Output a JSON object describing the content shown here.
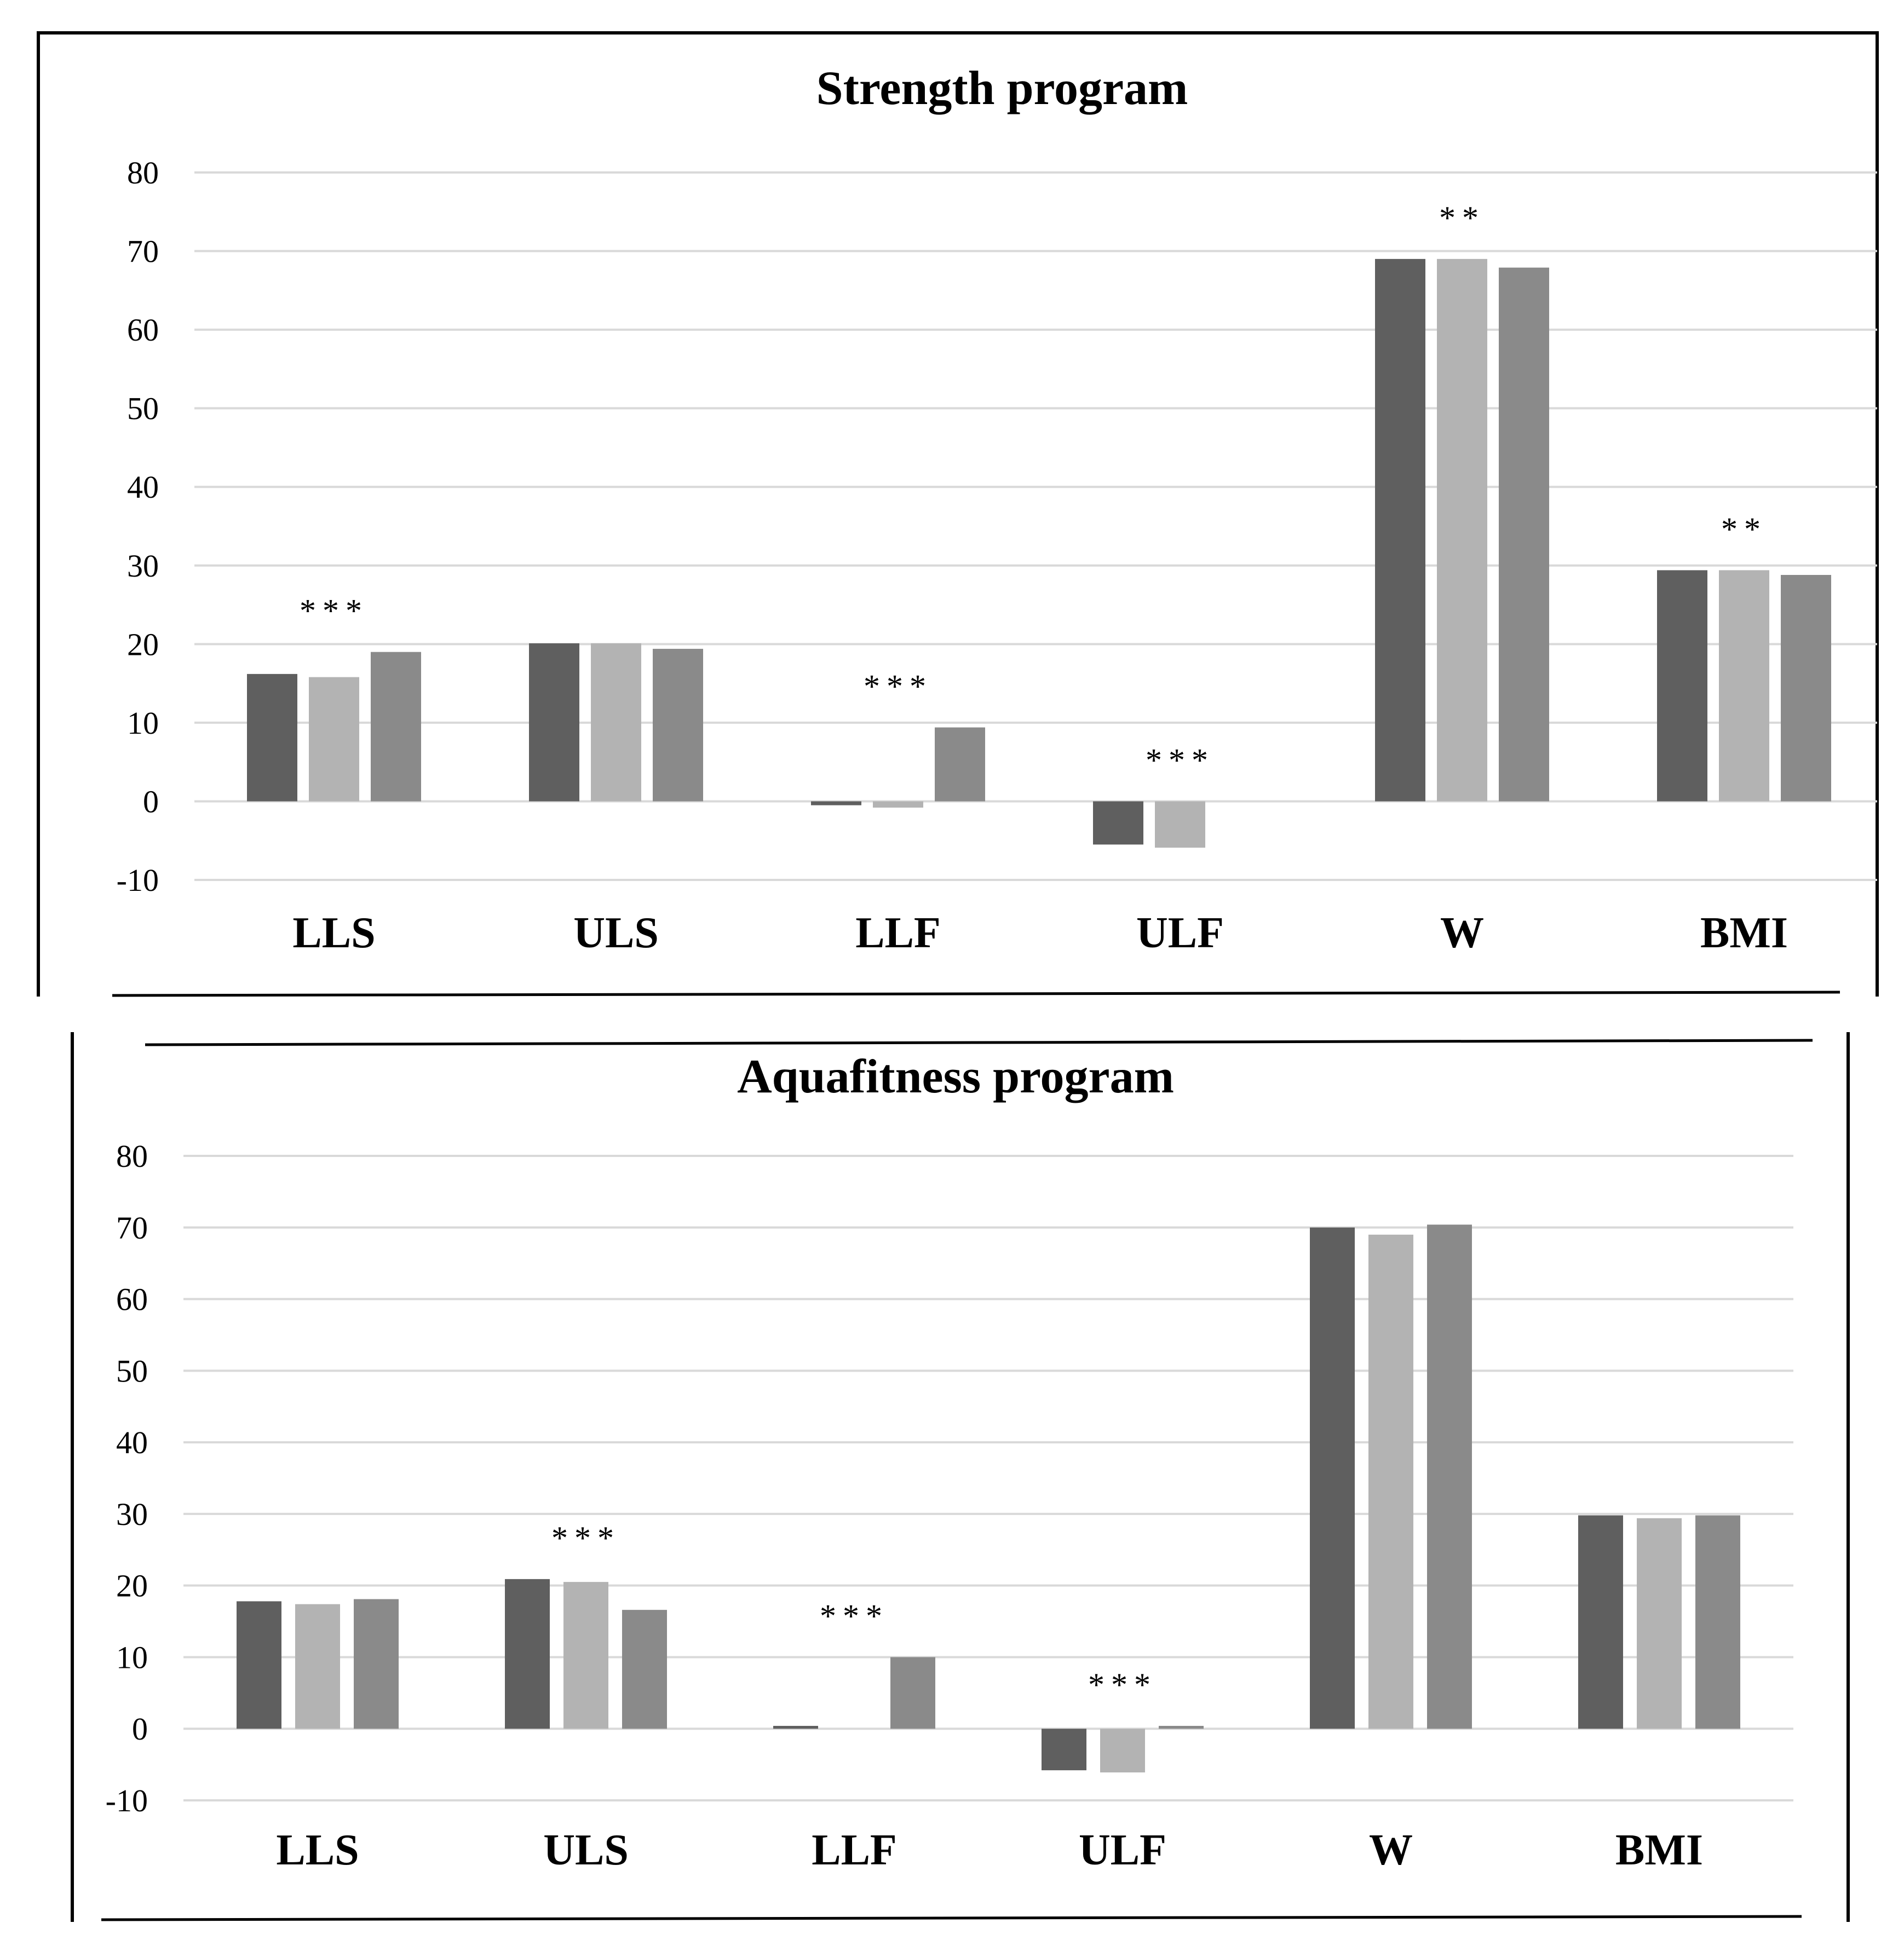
{
  "colors": {
    "series": [
      "#5f5f5f",
      "#b3b3b3",
      "#8a8a8a"
    ],
    "grid": "#d9d9d9",
    "frame": "#000000",
    "text": "#000000"
  },
  "chart_data": [
    {
      "type": "bar",
      "title": "Strength program",
      "categories": [
        "LLS",
        "ULS",
        "LLF",
        "ULF",
        "W",
        "BMI"
      ],
      "ylim": [
        -10,
        80
      ],
      "yticks": [
        80,
        70,
        60,
        50,
        40,
        30,
        20,
        10,
        0,
        -10
      ],
      "grid": true,
      "series": [
        {
          "name": "",
          "values": [
            16.2,
            20.1,
            -0.5,
            -5.5,
            69.0,
            29.4
          ]
        },
        {
          "name": "",
          "values": [
            15.8,
            20.1,
            -0.8,
            -5.9,
            69.0,
            29.4
          ]
        },
        {
          "name": "",
          "values": [
            19.0,
            19.4,
            9.4,
            null,
            67.9,
            28.8
          ]
        }
      ],
      "significance": [
        "***",
        "",
        "***",
        "***",
        "**",
        "**"
      ]
    },
    {
      "type": "bar",
      "title": "Aquafitness program",
      "categories": [
        "LLS",
        "ULS",
        "LLF",
        "ULF",
        "W",
        "BMI"
      ],
      "ylim": [
        -10,
        80
      ],
      "yticks": [
        80,
        70,
        60,
        50,
        40,
        30,
        20,
        10,
        0,
        -10
      ],
      "grid": true,
      "series": [
        {
          "name": "",
          "values": [
            17.8,
            20.9,
            0.4,
            -5.8,
            70.0,
            29.8
          ]
        },
        {
          "name": "",
          "values": [
            17.4,
            20.5,
            null,
            -6.1,
            69.0,
            29.4
          ]
        },
        {
          "name": "",
          "values": [
            18.1,
            16.6,
            10.0,
            0.4,
            70.4,
            29.8
          ]
        }
      ],
      "significance": [
        "",
        "***",
        "***",
        "***",
        "",
        ""
      ]
    }
  ]
}
